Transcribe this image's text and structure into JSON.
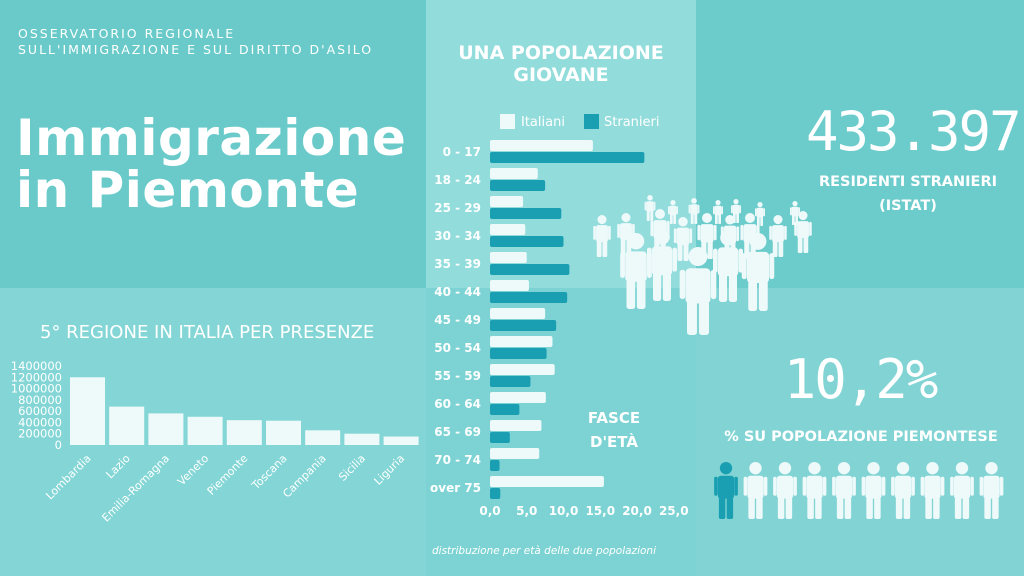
{
  "organization": {
    "line1": "OSSERVATORIO REGIONALE",
    "line2": "SULL'IMMIGRAZIONE E SUL DIRITTO D'ASILO"
  },
  "title": {
    "line1": "Immigrazione",
    "line2": "in Piemonte"
  },
  "regions_title": "5° REGIONE IN ITALIA PER PRESENZE",
  "pyramid_title": "UNA POPOLAZIONE GIOVANE",
  "pyramid_subtitle_line1": "FASCE",
  "pyramid_subtitle_line2": "D'ETÀ",
  "pyramid_caption": "distribuzione per età delle due popolazioni",
  "residents": {
    "value": "433.397",
    "label_line1": "RESIDENTI STRANIERI",
    "label_line2": "(ISTAT)"
  },
  "percentage": {
    "value": "10,2%",
    "label": "% SU POPOLAZIONE PIEMONTESE",
    "highlighted_people": 1,
    "total_people": 10
  },
  "colors": {
    "light": "#eef9fa",
    "dark": "#1a9fb2",
    "white": "#ffffff"
  },
  "chart_data": [
    {
      "type": "bar",
      "title": "5° REGIONE IN ITALIA PER PRESENZE",
      "categories": [
        "Lombardia",
        "Lazio",
        "Emilia-Romagna",
        "Veneto",
        "Piemonte",
        "Toscana",
        "Campania",
        "Sicilia",
        "Liguria"
      ],
      "values": [
        1200000,
        680000,
        560000,
        500000,
        440000,
        430000,
        260000,
        200000,
        150000
      ],
      "yticks": [
        "0",
        "200000",
        "400000",
        "600000",
        "800000",
        "1000000",
        "1200000",
        "1400000"
      ],
      "ylim": [
        0,
        1400000
      ]
    },
    {
      "type": "bar",
      "orientation": "horizontal",
      "title": "UNA POPOLAZIONE GIOVANE",
      "categories": [
        "0 - 17",
        "18 - 24",
        "25 - 29",
        "30 - 34",
        "35 - 39",
        "40 - 44",
        "45 - 49",
        "50 - 54",
        "55 - 59",
        "60 - 64",
        "65 - 69",
        "70 - 74",
        "over 75"
      ],
      "series": [
        {
          "name": "Italiani",
          "values": [
            14.0,
            6.5,
            4.5,
            4.8,
            5.0,
            5.3,
            7.5,
            8.5,
            8.8,
            7.6,
            7.0,
            6.7,
            15.5
          ]
        },
        {
          "name": "Stranieri",
          "values": [
            21.0,
            7.5,
            9.7,
            10.0,
            10.8,
            10.5,
            9.0,
            7.7,
            5.5,
            4.0,
            2.7,
            1.3,
            1.4
          ]
        }
      ],
      "xticks": [
        "0,0",
        "5,0",
        "10,0",
        "15,0",
        "20,0",
        "25,0"
      ],
      "xlim": [
        0,
        25
      ],
      "legend": "top"
    }
  ]
}
